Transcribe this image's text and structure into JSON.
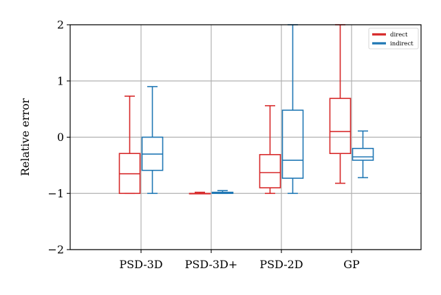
{
  "chart_data": {
    "type": "box",
    "title": "",
    "xlabel": "",
    "ylabel": "Relative error",
    "ylim": [
      -2,
      2
    ],
    "yticks": [
      {
        "value": 2,
        "label": "2"
      },
      {
        "value": 1,
        "label": "1"
      },
      {
        "value": 0,
        "label": "0"
      },
      {
        "value": -1,
        "label": "−1"
      },
      {
        "value": -2,
        "label": "−2"
      }
    ],
    "categories": [
      "PSD-3D",
      "PSD-3D+",
      "PSD-2D",
      "GP"
    ],
    "grid": true,
    "legend_position": "top-right",
    "series": [
      {
        "name": "direct",
        "color": "#d62728",
        "boxes": [
          {
            "whisker_low": -1.0,
            "q1": -1.0,
            "median": -0.65,
            "q3": -0.29,
            "whisker_high": 0.73
          },
          {
            "whisker_low": -1.0,
            "q1": -1.0,
            "median": -1.0,
            "q3": -1.0,
            "whisker_high": -0.98
          },
          {
            "whisker_low": -1.0,
            "q1": -0.9,
            "median": -0.63,
            "q3": -0.31,
            "whisker_high": 0.56
          },
          {
            "whisker_low": -0.82,
            "q1": -0.29,
            "median": 0.1,
            "q3": 0.69,
            "whisker_high": 2.0
          }
        ]
      },
      {
        "name": "indirect",
        "color": "#1f77b4",
        "boxes": [
          {
            "whisker_low": -1.0,
            "q1": -0.59,
            "median": -0.3,
            "q3": 0.0,
            "whisker_high": 0.9
          },
          {
            "whisker_low": -1.0,
            "q1": -1.0,
            "median": -0.99,
            "q3": -0.98,
            "whisker_high": -0.95
          },
          {
            "whisker_low": -1.0,
            "q1": -0.73,
            "median": -0.41,
            "q3": 0.48,
            "whisker_high": 2.0
          },
          {
            "whisker_low": -0.72,
            "q1": -0.41,
            "median": -0.35,
            "q3": -0.2,
            "whisker_high": 0.11
          }
        ]
      }
    ]
  }
}
